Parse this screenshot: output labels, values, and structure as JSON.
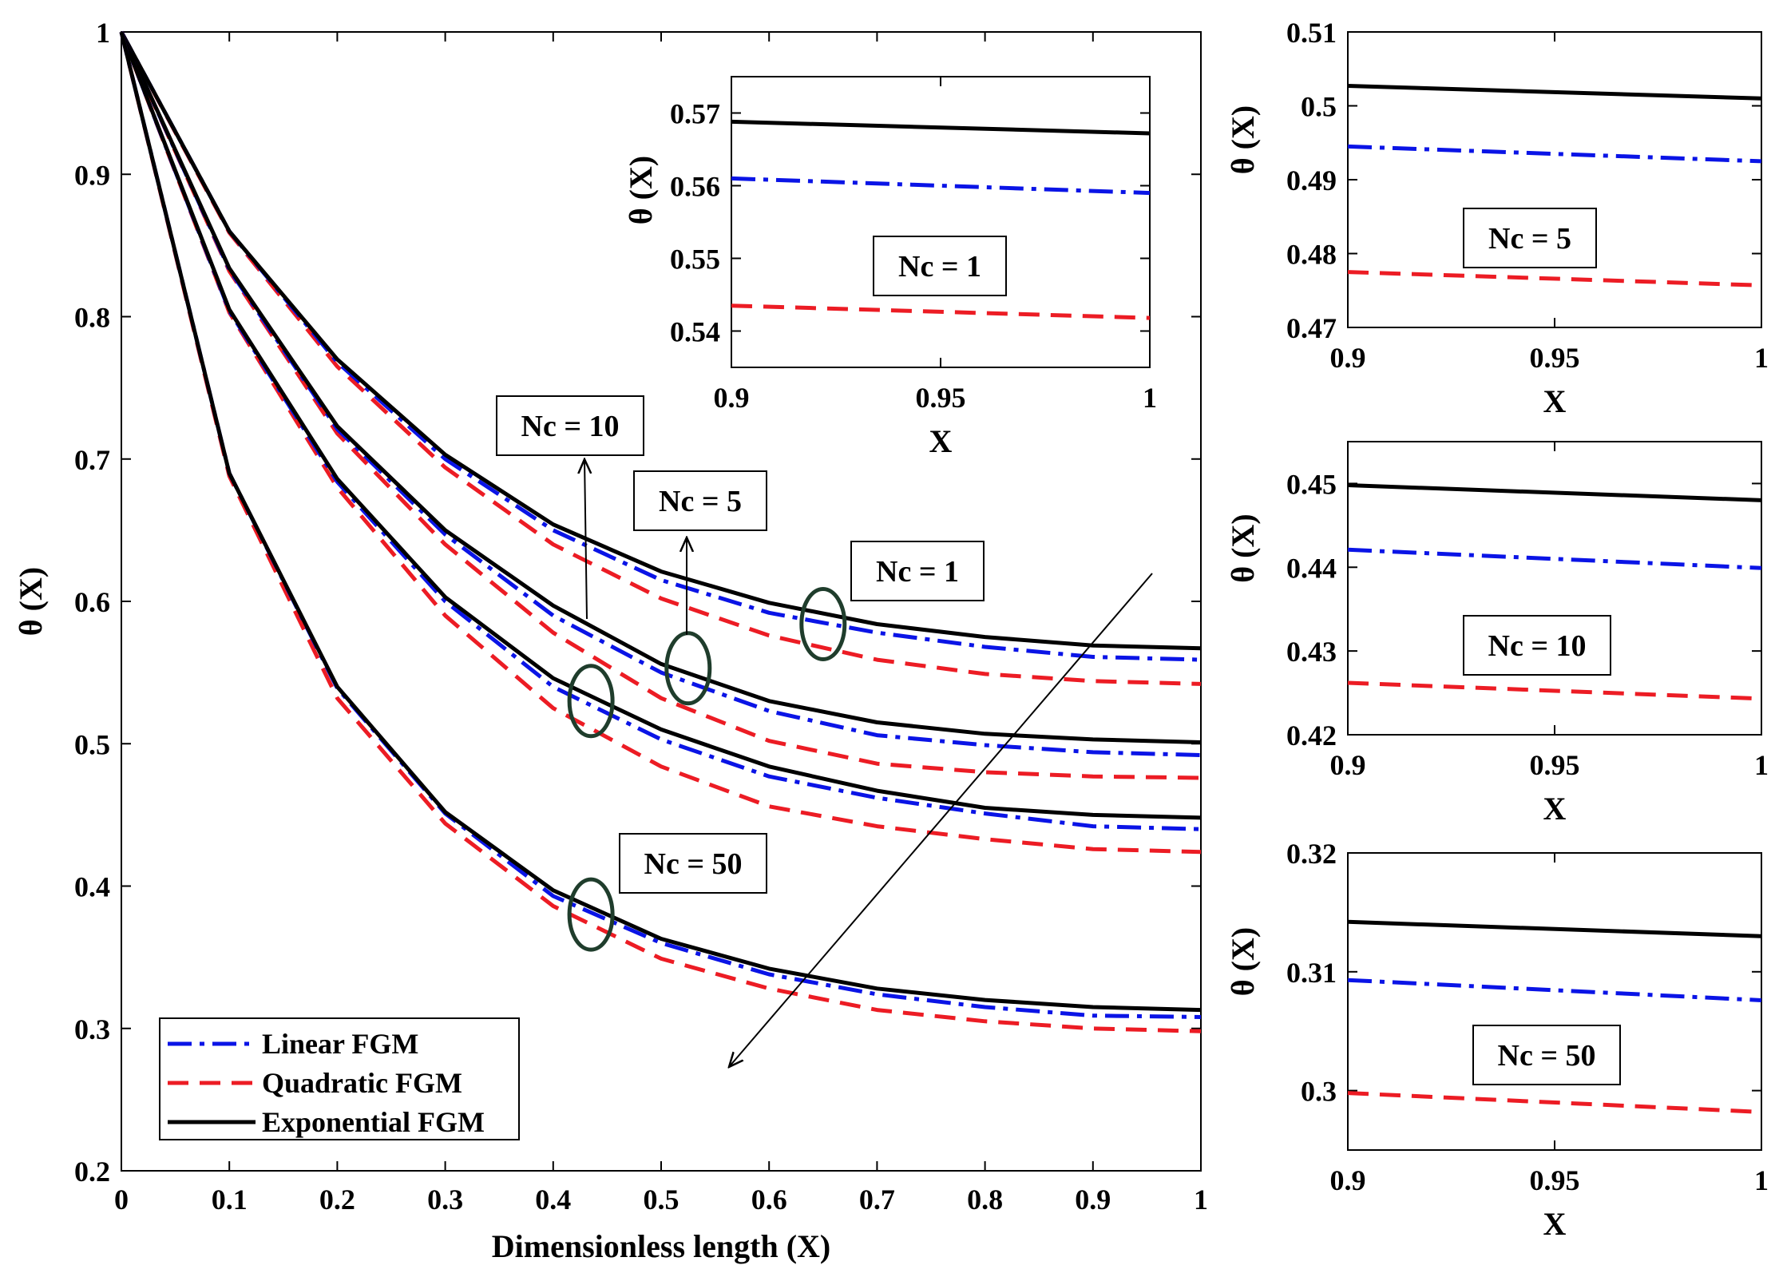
{
  "colors": {
    "linear": "#0a14e6",
    "quadratic": "#ec1c24",
    "exponential": "#000000",
    "marker": "#1f3d2c"
  },
  "legend": {
    "linear": "Linear FGM",
    "quadratic": "Quadratic FGM",
    "exponential": "Exponential FGM"
  },
  "chart_data": [
    {
      "id": "main",
      "type": "line",
      "xlabel": "Dimensionless length (X)",
      "ylabel": "θ (X)",
      "xlim": [
        0,
        1
      ],
      "ylim": [
        0.2,
        1
      ],
      "xticks": [
        "0",
        "0.1",
        "0.2",
        "0.3",
        "0.4",
        "0.5",
        "0.6",
        "0.7",
        "0.8",
        "0.9",
        "1"
      ],
      "xtick_values": [
        0,
        0.1,
        0.2,
        0.3,
        0.4,
        0.5,
        0.6,
        0.7,
        0.8,
        0.9,
        1
      ],
      "yticks": [
        "0.2",
        "0.3",
        "0.4",
        "0.5",
        "0.6",
        "0.7",
        "0.8",
        "0.9",
        "1"
      ],
      "ytick_values": [
        0.2,
        0.3,
        0.4,
        0.5,
        0.6,
        0.7,
        0.8,
        0.9,
        1
      ],
      "x": [
        0,
        0.1,
        0.2,
        0.3,
        0.4,
        0.5,
        0.6,
        0.7,
        0.8,
        0.9,
        1
      ],
      "groups": [
        {
          "label": "Nc = 1",
          "linear": [
            1,
            0.86,
            0.768,
            0.7,
            0.65,
            0.615,
            0.592,
            0.578,
            0.568,
            0.561,
            0.559
          ],
          "quadratic": [
            1,
            0.859,
            0.765,
            0.694,
            0.64,
            0.602,
            0.576,
            0.559,
            0.549,
            0.544,
            0.542
          ],
          "exponential": [
            1,
            0.86,
            0.77,
            0.703,
            0.654,
            0.621,
            0.599,
            0.584,
            0.575,
            0.569,
            0.567
          ]
        },
        {
          "label": "Nc = 5",
          "linear": [
            1,
            0.833,
            0.721,
            0.647,
            0.59,
            0.55,
            0.523,
            0.506,
            0.499,
            0.494,
            0.492
          ],
          "quadratic": [
            1,
            0.832,
            0.718,
            0.64,
            0.578,
            0.532,
            0.502,
            0.486,
            0.48,
            0.477,
            0.476
          ],
          "exponential": [
            1,
            0.834,
            0.723,
            0.65,
            0.597,
            0.556,
            0.53,
            0.515,
            0.507,
            0.503,
            0.501
          ]
        },
        {
          "label": "Nc = 10",
          "linear": [
            1,
            0.804,
            0.684,
            0.6,
            0.54,
            0.503,
            0.477,
            0.462,
            0.451,
            0.442,
            0.44
          ],
          "quadratic": [
            1,
            0.803,
            0.68,
            0.59,
            0.525,
            0.484,
            0.456,
            0.442,
            0.433,
            0.426,
            0.424
          ],
          "exponential": [
            1,
            0.805,
            0.686,
            0.603,
            0.546,
            0.51,
            0.484,
            0.467,
            0.455,
            0.45,
            0.448
          ]
        },
        {
          "label": "Nc = 50",
          "linear": [
            1,
            0.69,
            0.539,
            0.451,
            0.393,
            0.36,
            0.338,
            0.324,
            0.315,
            0.309,
            0.308
          ],
          "quadratic": [
            1,
            0.688,
            0.532,
            0.444,
            0.386,
            0.349,
            0.328,
            0.313,
            0.305,
            0.3,
            0.298
          ],
          "exponential": [
            1,
            0.69,
            0.54,
            0.452,
            0.397,
            0.363,
            0.342,
            0.328,
            0.32,
            0.315,
            0.313
          ]
        }
      ],
      "annotations": [
        "Nc = 10",
        "Nc = 5",
        "Nc = 1",
        "Nc = 50"
      ]
    },
    {
      "id": "inset-nc1",
      "type": "line",
      "label": "Nc = 1",
      "xlabel": "X",
      "ylabel": "θ (X)",
      "xlim": [
        0.9,
        1
      ],
      "ylim": [
        0.535,
        0.575
      ],
      "xticks": [
        "0.9",
        "0.95",
        "1"
      ],
      "xtick_values": [
        0.9,
        0.95,
        1
      ],
      "yticks": [
        "0.54",
        "0.55",
        "0.56",
        "0.57"
      ],
      "ytick_values": [
        0.54,
        0.55,
        0.56,
        0.57
      ],
      "x": [
        0.9,
        1
      ],
      "linear": [
        0.561,
        0.559
      ],
      "quadratic": [
        0.5435,
        0.5418
      ],
      "exponential": [
        0.5688,
        0.5672
      ]
    },
    {
      "id": "right-nc5",
      "type": "line",
      "label": "Nc = 5",
      "xlabel": "X",
      "ylabel": "θ (X)",
      "xlim": [
        0.9,
        1
      ],
      "ylim": [
        0.47,
        0.51
      ],
      "xticks": [
        "0.9",
        "0.95",
        "1"
      ],
      "xtick_values": [
        0.9,
        0.95,
        1
      ],
      "yticks": [
        "0.47",
        "0.48",
        "0.49",
        "0.5",
        "0.51"
      ],
      "ytick_values": [
        0.47,
        0.48,
        0.49,
        0.5,
        0.51
      ],
      "x": [
        0.9,
        1
      ],
      "linear": [
        0.4945,
        0.4925
      ],
      "quadratic": [
        0.4775,
        0.4757
      ],
      "exponential": [
        0.5027,
        0.501
      ]
    },
    {
      "id": "right-nc10",
      "type": "line",
      "label": "Nc = 10",
      "xlabel": "X",
      "ylabel": "θ (X)",
      "xlim": [
        0.9,
        1
      ],
      "ylim": [
        0.42,
        0.455
      ],
      "xticks": [
        "0.9",
        "0.95",
        "1"
      ],
      "xtick_values": [
        0.9,
        0.95,
        1
      ],
      "yticks": [
        "0.42",
        "0.43",
        "0.44",
        "0.45"
      ],
      "ytick_values": [
        0.42,
        0.43,
        0.44,
        0.45
      ],
      "x": [
        0.9,
        1
      ],
      "linear": [
        0.4421,
        0.4399
      ],
      "quadratic": [
        0.4262,
        0.4243
      ],
      "exponential": [
        0.4498,
        0.448
      ]
    },
    {
      "id": "right-nc50",
      "type": "line",
      "label": "Nc = 50",
      "xlabel": "X",
      "ylabel": "θ (X)",
      "xlim": [
        0.9,
        1
      ],
      "ylim": [
        0.295,
        0.32
      ],
      "xticks": [
        "0.9",
        "0.95",
        "1"
      ],
      "xtick_values": [
        0.9,
        0.95,
        1
      ],
      "yticks": [
        "0.3",
        "0.31",
        "0.32"
      ],
      "ytick_values": [
        0.3,
        0.31,
        0.32
      ],
      "x": [
        0.9,
        1
      ],
      "linear": [
        0.3093,
        0.3076
      ],
      "quadratic": [
        0.2998,
        0.2982
      ],
      "exponential": [
        0.3142,
        0.313
      ]
    }
  ]
}
